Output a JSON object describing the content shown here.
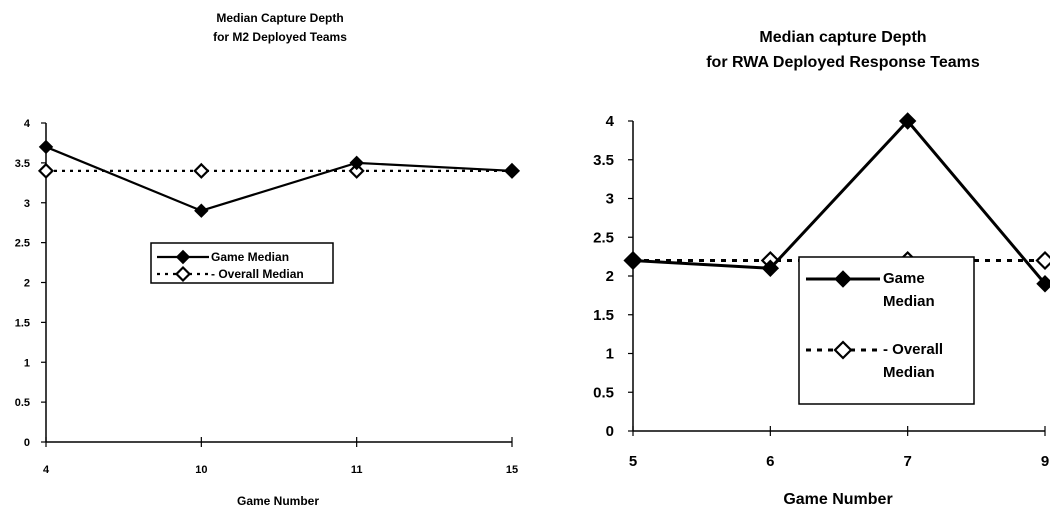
{
  "chart_data": [
    {
      "type": "line",
      "title_lines": [
        "Median Capture Depth",
        "for M2 Deployed Teams"
      ],
      "xlabel": "Game Number",
      "ylabel": "",
      "categories": [
        "4",
        "10",
        "11",
        "15"
      ],
      "ylim": [
        0,
        4
      ],
      "yticks": [
        "0",
        "0.5",
        "1",
        "1.5",
        "2",
        "2.5",
        "3",
        "3.5",
        "4"
      ],
      "series": [
        {
          "name": "Game Median",
          "values": [
            3.7,
            2.9,
            3.5,
            3.4
          ],
          "style": "solid",
          "marker": "filled-diamond",
          "color": "#000000"
        },
        {
          "name": "Overall Median",
          "values": [
            3.4,
            3.4,
            3.4,
            3.4
          ],
          "style": "dotted",
          "marker": "open-diamond",
          "color": "#000000"
        }
      ],
      "legend": {
        "placement": "center",
        "lines": [
          [
            "Game Median"
          ],
          [
            "Overall Median"
          ]
        ]
      },
      "grid": false
    },
    {
      "type": "line",
      "title_lines": [
        "Median capture Depth",
        "for RWA Deployed Response Teams"
      ],
      "xlabel": "Game Number",
      "ylabel": "",
      "categories": [
        "5",
        "6",
        "7",
        "9"
      ],
      "ylim": [
        0,
        4
      ],
      "yticks": [
        "0",
        "0.5",
        "1",
        "1.5",
        "2",
        "2.5",
        "3",
        "3.5",
        "4"
      ],
      "series": [
        {
          "name": "Game Median",
          "values": [
            2.2,
            2.1,
            4.0,
            1.9
          ],
          "style": "solid",
          "marker": "filled-diamond",
          "color": "#000000"
        },
        {
          "name": "Overall Median",
          "values": [
            2.2,
            2.2,
            2.2,
            2.2
          ],
          "style": "dotted",
          "marker": "open-diamond",
          "color": "#000000"
        }
      ],
      "legend": {
        "placement": "lower-right",
        "lines": [
          [
            "Game",
            "Median"
          ],
          [
            "Overall",
            "Median"
          ]
        ]
      },
      "grid": false
    }
  ]
}
